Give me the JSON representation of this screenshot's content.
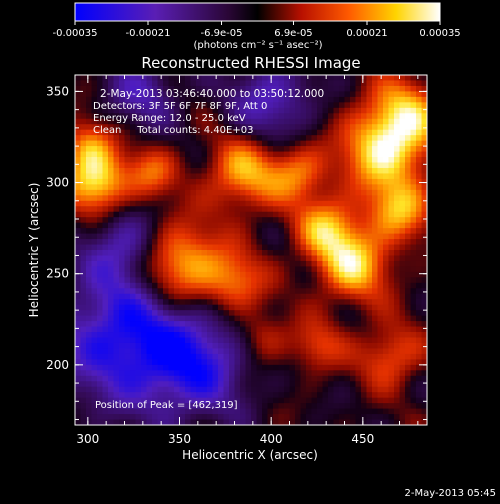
{
  "chart_data": {
    "type": "heatmap",
    "title": "Reconstructed RHESSI Image",
    "xlabel": "Heliocentric X (arcsec)",
    "ylabel": "Heliocentric Y (arcsec)",
    "xlim": [
      293,
      485
    ],
    "ylim": [
      167,
      359
    ],
    "xticks": [
      300,
      350,
      400,
      450
    ],
    "yticks": [
      200,
      250,
      300,
      350
    ],
    "colorbar": {
      "min": -0.00035,
      "max": 0.00035,
      "ticks": [
        -0.00035,
        -0.00021,
        -6.9e-05,
        6.9e-05,
        0.00021,
        0.00035
      ],
      "tick_labels": [
        "-0.00035",
        "-0.00021",
        "-6.9e-05",
        "6.9e-05",
        "0.00021",
        "0.00035"
      ],
      "unit_label": "(photons cm⁻² s⁻¹ asec⁻²)",
      "colors": [
        "#0000ff",
        "#5a1eb4",
        "#3a0a4a",
        "#000000",
        "#c01000",
        "#ff6000",
        "#ffe000",
        "#ffffff"
      ]
    },
    "annotations": {
      "time_range": "2-May-2013 03:46:40.000 to 03:50:12.000",
      "detectors": "Detectors: 3F 5F 6F 7F 8F 9F, Att 0",
      "energy": "Energy Range: 12.0 - 25.0 keV",
      "method": "Clean     Total counts: 4.40E+03",
      "peak": "Position of Peak = [462,319]"
    },
    "peak_position": [
      462,
      319
    ],
    "total_counts": 4400,
    "energy_range_kev": [
      12.0,
      25.0
    ],
    "grid": false
  },
  "footer": {
    "timestamp": "2-May-2013 05:45"
  }
}
